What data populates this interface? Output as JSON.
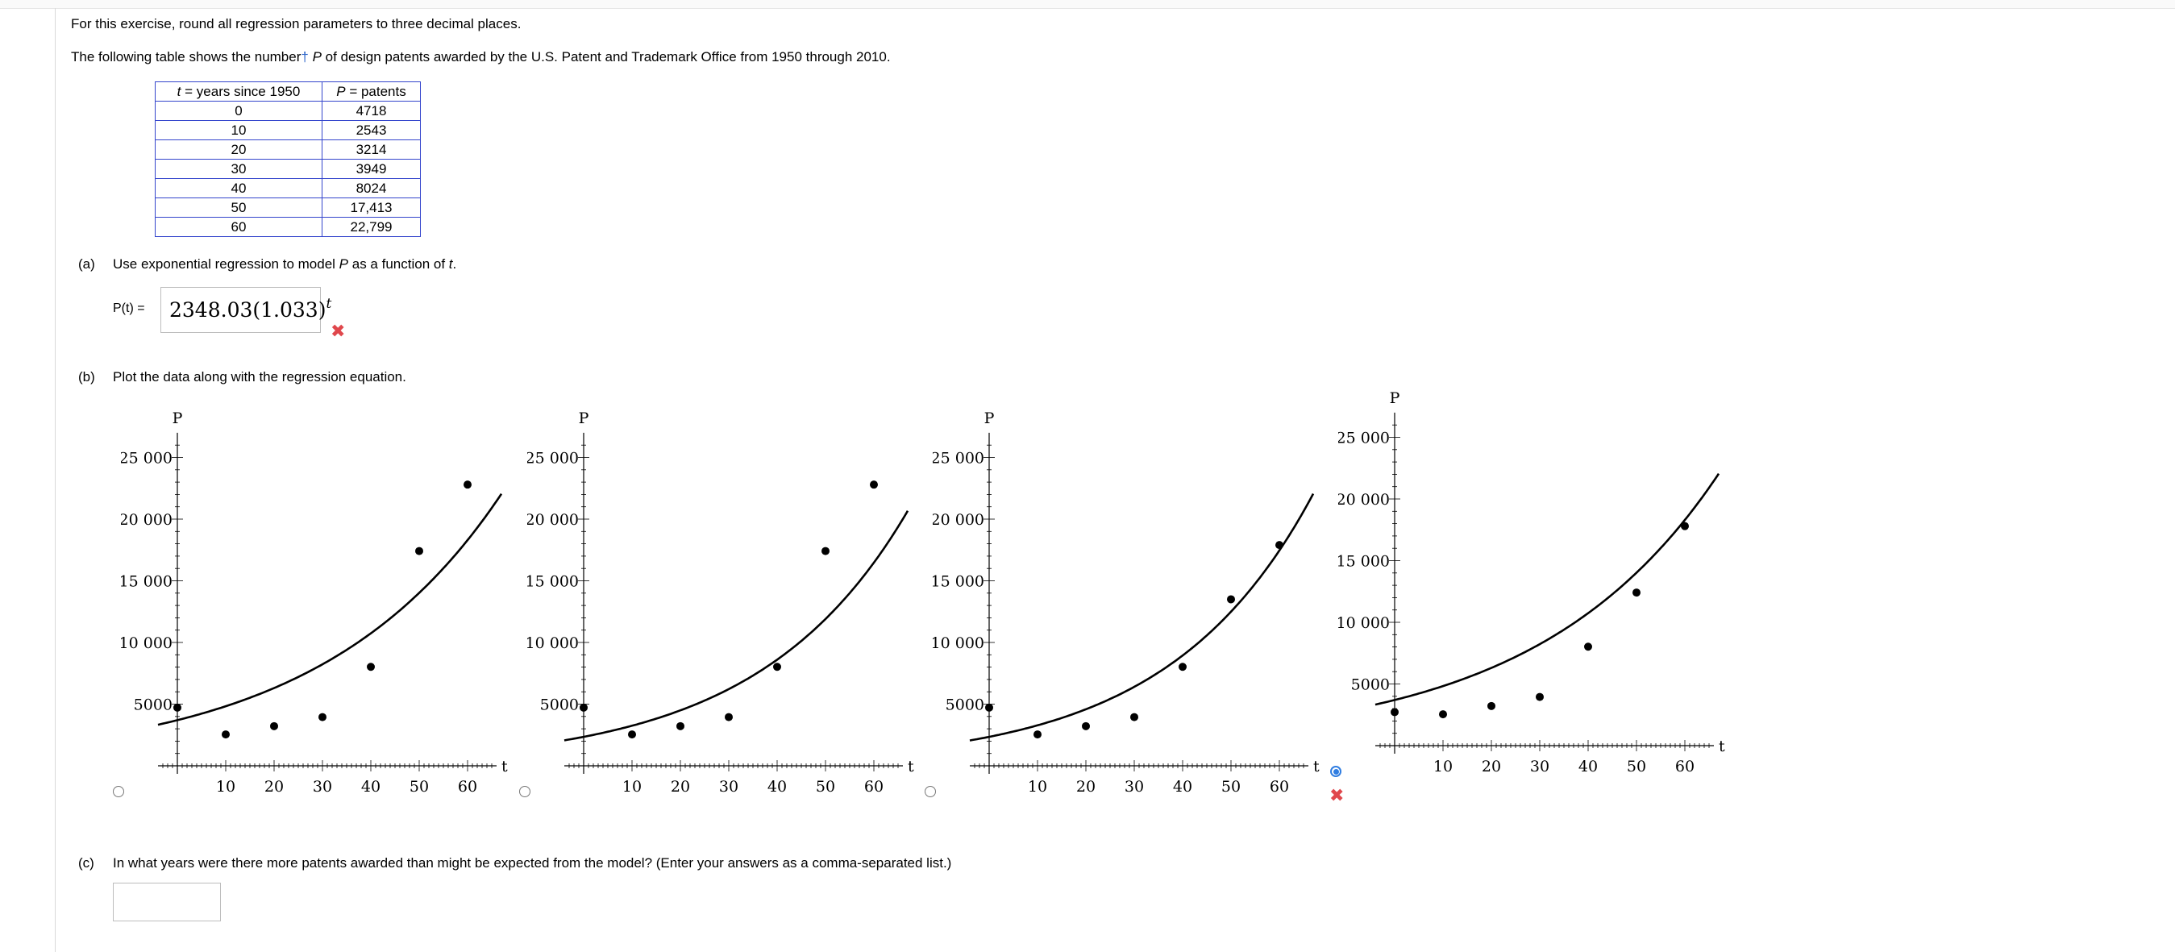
{
  "intro": "For this exercise, round all regression parameters to three decimal places.",
  "statement": {
    "before": "The following table shows the number",
    "dagger": "†",
    "var": "P",
    "after": "of design patents awarded by the U.S. Patent and Trademark Office from 1950 through 2010."
  },
  "table": {
    "headers": [
      {
        "var": "t",
        "rest": " = years since 1950"
      },
      {
        "var": "P",
        "rest": " = patents"
      }
    ],
    "rows": [
      [
        "0",
        "4718"
      ],
      [
        "10",
        "2543"
      ],
      [
        "20",
        "3214"
      ],
      [
        "30",
        "3949"
      ],
      [
        "40",
        "8024"
      ],
      [
        "50",
        "17,413"
      ],
      [
        "60",
        "22,799"
      ]
    ]
  },
  "part_a": {
    "label": "(a)",
    "text_before": "Use exponential regression to model",
    "var1": "P",
    "text_mid": "as a function of",
    "var2": "t",
    "text_end": ".",
    "func_label": "P(t) =",
    "answer_value": "2348.03(1.033)",
    "answer_exponent": "t",
    "status": "incorrect"
  },
  "part_b": {
    "label": "(b)",
    "text": "Plot the data along with the regression equation.",
    "selected_option": 3,
    "status": "incorrect"
  },
  "part_c": {
    "label": "(c)",
    "text": "In what years were there more patents awarded than might be expected from the model? (Enter your answers as a comma-separated list.)",
    "answer_value": ""
  },
  "chart_data": [
    {
      "type": "scatter",
      "xlabel": "t",
      "ylabel": "P",
      "xlim": [
        -7,
        67
      ],
      "ylim": [
        0,
        27000
      ],
      "xticks": [
        10,
        20,
        30,
        40,
        50,
        60
      ],
      "yticks": [
        5000,
        10000,
        15000,
        20000,
        25000
      ],
      "ytick_labels": [
        "5000",
        "10 000",
        "15 000",
        "20 000",
        "25 000"
      ],
      "points": {
        "x": [
          0,
          10,
          20,
          30,
          40,
          50,
          60
        ],
        "y": [
          4718,
          2543,
          3214,
          3949,
          8024,
          17413,
          22799
        ]
      },
      "curve": {
        "a": 3700,
        "b": 1.027
      }
    },
    {
      "type": "scatter",
      "xlabel": "t",
      "ylabel": "P",
      "xlim": [
        -7,
        67
      ],
      "ylim": [
        0,
        27000
      ],
      "xticks": [
        10,
        20,
        30,
        40,
        50,
        60
      ],
      "yticks": [
        5000,
        10000,
        15000,
        20000,
        25000
      ],
      "ytick_labels": [
        "5000",
        "10 000",
        "15 000",
        "20 000",
        "25 000"
      ],
      "points": {
        "x": [
          0,
          10,
          20,
          30,
          40,
          50,
          60
        ],
        "y": [
          4718,
          2543,
          3214,
          3949,
          8024,
          17413,
          22799
        ]
      },
      "curve": {
        "a": 2348.03,
        "b": 1.033
      }
    },
    {
      "type": "scatter",
      "xlabel": "t",
      "ylabel": "P",
      "xlim": [
        -7,
        67
      ],
      "ylim": [
        0,
        27000
      ],
      "xticks": [
        10,
        20,
        30,
        40,
        50,
        60
      ],
      "yticks": [
        5000,
        10000,
        15000,
        20000,
        25000
      ],
      "ytick_labels": [
        "5000",
        "10 000",
        "15 000",
        "20 000",
        "25 000"
      ],
      "points": {
        "x": [
          0,
          10,
          20,
          30,
          40,
          50,
          60
        ],
        "y": [
          4718,
          2543,
          3214,
          3949,
          8024,
          13500,
          17900
        ]
      },
      "curve": {
        "a": 2348.03,
        "b": 1.034
      }
    },
    {
      "type": "scatter",
      "xlabel": "t",
      "ylabel": "P",
      "xlim": [
        -7,
        67
      ],
      "ylim": [
        0,
        27000
      ],
      "xticks": [
        10,
        20,
        30,
        40,
        50,
        60
      ],
      "yticks": [
        5000,
        10000,
        15000,
        20000,
        25000
      ],
      "ytick_labels": [
        "5000",
        "10 000",
        "15 000",
        "20 000",
        "25 000"
      ],
      "points": {
        "x": [
          0,
          10,
          20,
          30,
          40,
          50,
          60
        ],
        "y": [
          2718,
          2543,
          3214,
          3949,
          8024,
          12413,
          17799
        ]
      },
      "curve": {
        "a": 3700,
        "b": 1.027
      }
    }
  ]
}
